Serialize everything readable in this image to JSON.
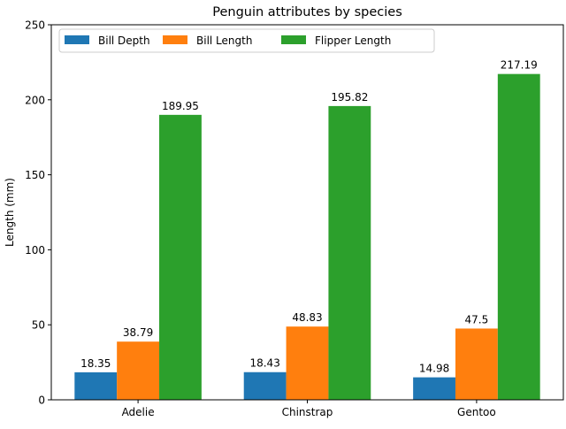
{
  "chart_data": {
    "type": "bar",
    "title": "Penguin attributes by species",
    "xlabel": "",
    "ylabel": "Length (mm)",
    "categories": [
      "Adelie",
      "Chinstrap",
      "Gentoo"
    ],
    "series": [
      {
        "name": "Bill Depth",
        "values": [
          18.35,
          18.43,
          14.98
        ],
        "color": "#1f77b4"
      },
      {
        "name": "Bill Length",
        "values": [
          38.79,
          48.83,
          47.5
        ],
        "color": "#ff7f0e"
      },
      {
        "name": "Flipper Length",
        "values": [
          189.95,
          195.82,
          217.19
        ],
        "color": "#2ca02c"
      }
    ],
    "data_labels": [
      [
        "18.35",
        "18.43",
        "14.98"
      ],
      [
        "38.79",
        "48.83",
        "47.5"
      ],
      [
        "189.95",
        "195.82",
        "217.19"
      ]
    ],
    "ylim": [
      0,
      250
    ],
    "yticks": [
      0,
      50,
      100,
      150,
      200,
      250
    ],
    "grid": false,
    "legend": {
      "placement": "upper-left",
      "ncols": 3
    }
  }
}
